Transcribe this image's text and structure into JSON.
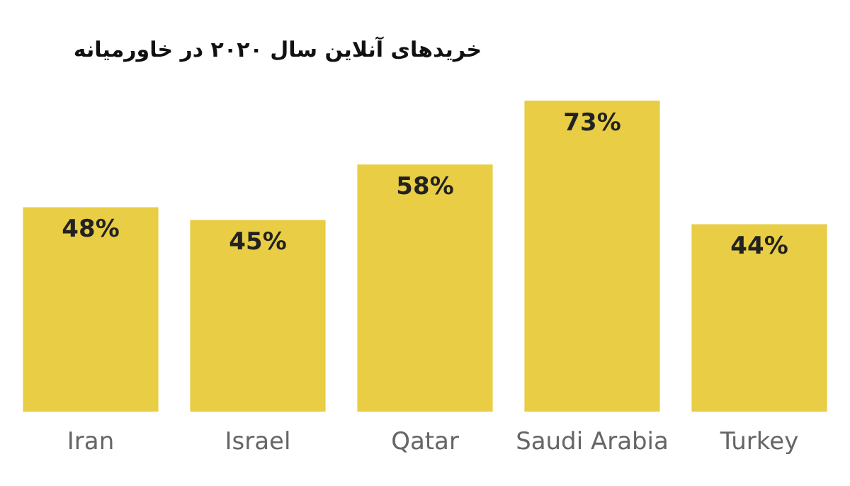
{
  "chart_data": {
    "type": "bar",
    "title": "خریدهای آنلاین سال ۲۰۲۰ در خاورمیانه",
    "categories": [
      "Iran",
      "Israel",
      "Qatar",
      "Saudi Arabia",
      "Turkey"
    ],
    "values": [
      48,
      45,
      58,
      73,
      44
    ],
    "value_labels": [
      "48%",
      "45%",
      "58%",
      "73%",
      "44%"
    ],
    "color": "#e8cd45",
    "tick_labels": "x",
    "grid": false,
    "legend": false
  }
}
